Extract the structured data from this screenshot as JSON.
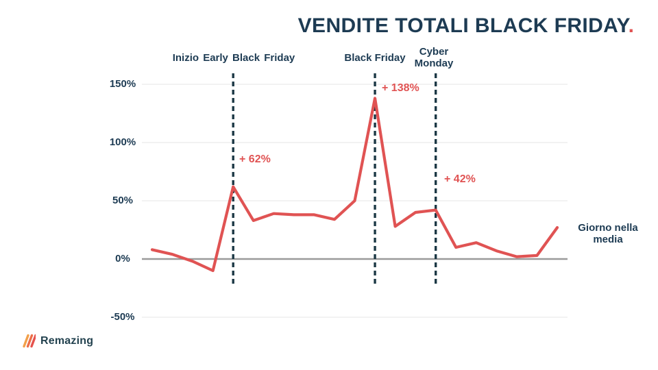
{
  "title": {
    "text": "VENDITE TOTALI BLACK FRIDAY",
    "dot": "."
  },
  "right_label": "Giorno nella media",
  "logo": {
    "text": "Remazing"
  },
  "colors": {
    "navy": "#1d3b53",
    "red": "#e05353",
    "grid": "#e9e9e9",
    "zero_axis": "#9a9a9a",
    "dashed_line": "#1c3845",
    "title_dot": "#e05353",
    "logo_stripe_1": "#f2a04a",
    "logo_stripe_2": "#ec6f49",
    "logo_stripe_3": "#e5524d"
  },
  "chart_data": {
    "type": "line",
    "title": "VENDITE TOTALI BLACK FRIDAY.",
    "xlabel": "",
    "ylabel": "",
    "unit": "%",
    "ylim": [
      -50,
      150
    ],
    "grid": "horizontal",
    "legend": "none",
    "series_color": "#e05353",
    "x": [
      1,
      2,
      3,
      4,
      5,
      6,
      7,
      8,
      9,
      10,
      11,
      12,
      13,
      14,
      15,
      16,
      17,
      18,
      19,
      20,
      21
    ],
    "values": [
      8,
      4,
      -2,
      -10,
      62,
      33,
      39,
      38,
      38,
      34,
      50,
      138,
      28,
      40,
      42,
      10,
      14,
      7,
      2,
      3,
      27
    ],
    "yticks": [
      {
        "label": "150%",
        "value": 150
      },
      {
        "label": "100%",
        "value": 100
      },
      {
        "label": "50%",
        "value": 50
      },
      {
        "label": "0%",
        "value": 0
      },
      {
        "label": "-50%",
        "value": -50
      }
    ],
    "vlines": [
      {
        "label": "Inizio Early Black Friday",
        "x": 5
      },
      {
        "label": "Black Friday",
        "x": 12
      },
      {
        "label": "Cyber Monday",
        "x": 15
      }
    ],
    "annotations": [
      {
        "text": "+ 62%",
        "x": 5,
        "value": 62
      },
      {
        "text": "+ 138%",
        "x": 12,
        "value": 138
      },
      {
        "text": "+ 42%",
        "x": 15,
        "value": 42
      }
    ],
    "baseline_label": "Giorno nella media"
  }
}
